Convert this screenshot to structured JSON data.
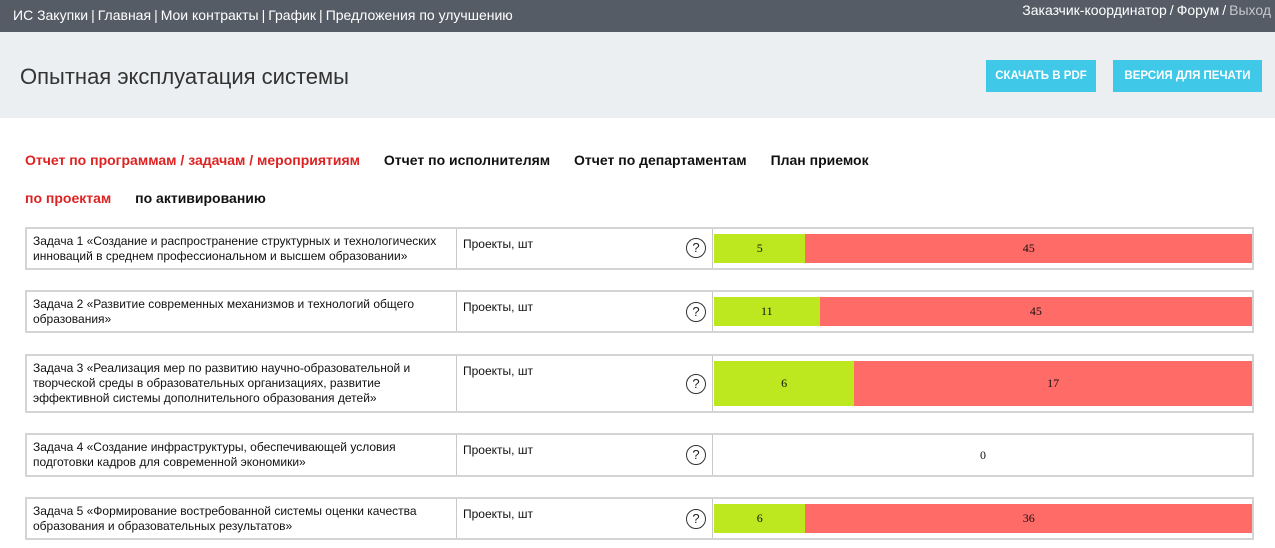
{
  "topnav": [
    "ИС Закупки",
    "Главная",
    "Мои контракты",
    "График",
    "Предложения по улучшению"
  ],
  "nav_separator": "|",
  "user": {
    "role": "Заказчик-координатор",
    "forum": "Форум",
    "logout": "Выход",
    "separator": "/"
  },
  "page_title": "Опытная эксплуатация системы",
  "buttons": {
    "pdf": "СКАЧАТЬ В PDF",
    "print": "ВЕРСИЯ ДЛЯ ПЕЧАТИ"
  },
  "report_tabs": [
    {
      "label": "Отчет по программам / задачам / мероприятиям",
      "active": true
    },
    {
      "label": "Отчет по исполнителям",
      "active": false
    },
    {
      "label": "Отчет по департаментам",
      "active": false
    },
    {
      "label": "План приемок",
      "active": false
    }
  ],
  "sub_tabs": [
    {
      "label": "по проектам",
      "active": true
    },
    {
      "label": "по активированию",
      "active": false
    }
  ],
  "help_glyph": "?",
  "colors": {
    "topbar": "#565c66",
    "header_bg": "#eceff1",
    "button": "#3fc8e8",
    "active_tab": "#dd2222",
    "done": "#bde81f",
    "remaining": "#ff6b66"
  },
  "tasks": [
    {
      "name": "Задача 1 «Создание и распространение структурных и технологических инноваций в среднем профессиональном и высшем образовании»",
      "unit": "Проекты, шт",
      "done": 5,
      "remaining": 45
    },
    {
      "name": "Задача 2 «Развитие современных механизмов и технологий общего образования»",
      "unit": "Проекты, шт",
      "done": 11,
      "remaining": 45
    },
    {
      "name": "Задача 3 «Реализация мер по развитию научно-образовательной и творческой среды в образовательных организациях, развитие эффективной системы дополнительного образования детей»",
      "unit": "Проекты, шт",
      "done": 6,
      "remaining": 17
    },
    {
      "name": "Задача 4 «Создание инфраструктуры, обеспечивающей условия подготовки кадров для современной экономики»",
      "unit": "Проекты, шт",
      "done": 0,
      "remaining": 0
    },
    {
      "name": "Задача 5 «Формирование востребованной системы оценки качества образования и образовательных результатов»",
      "unit": "Проекты, шт",
      "done": 6,
      "remaining": 36
    }
  ]
}
